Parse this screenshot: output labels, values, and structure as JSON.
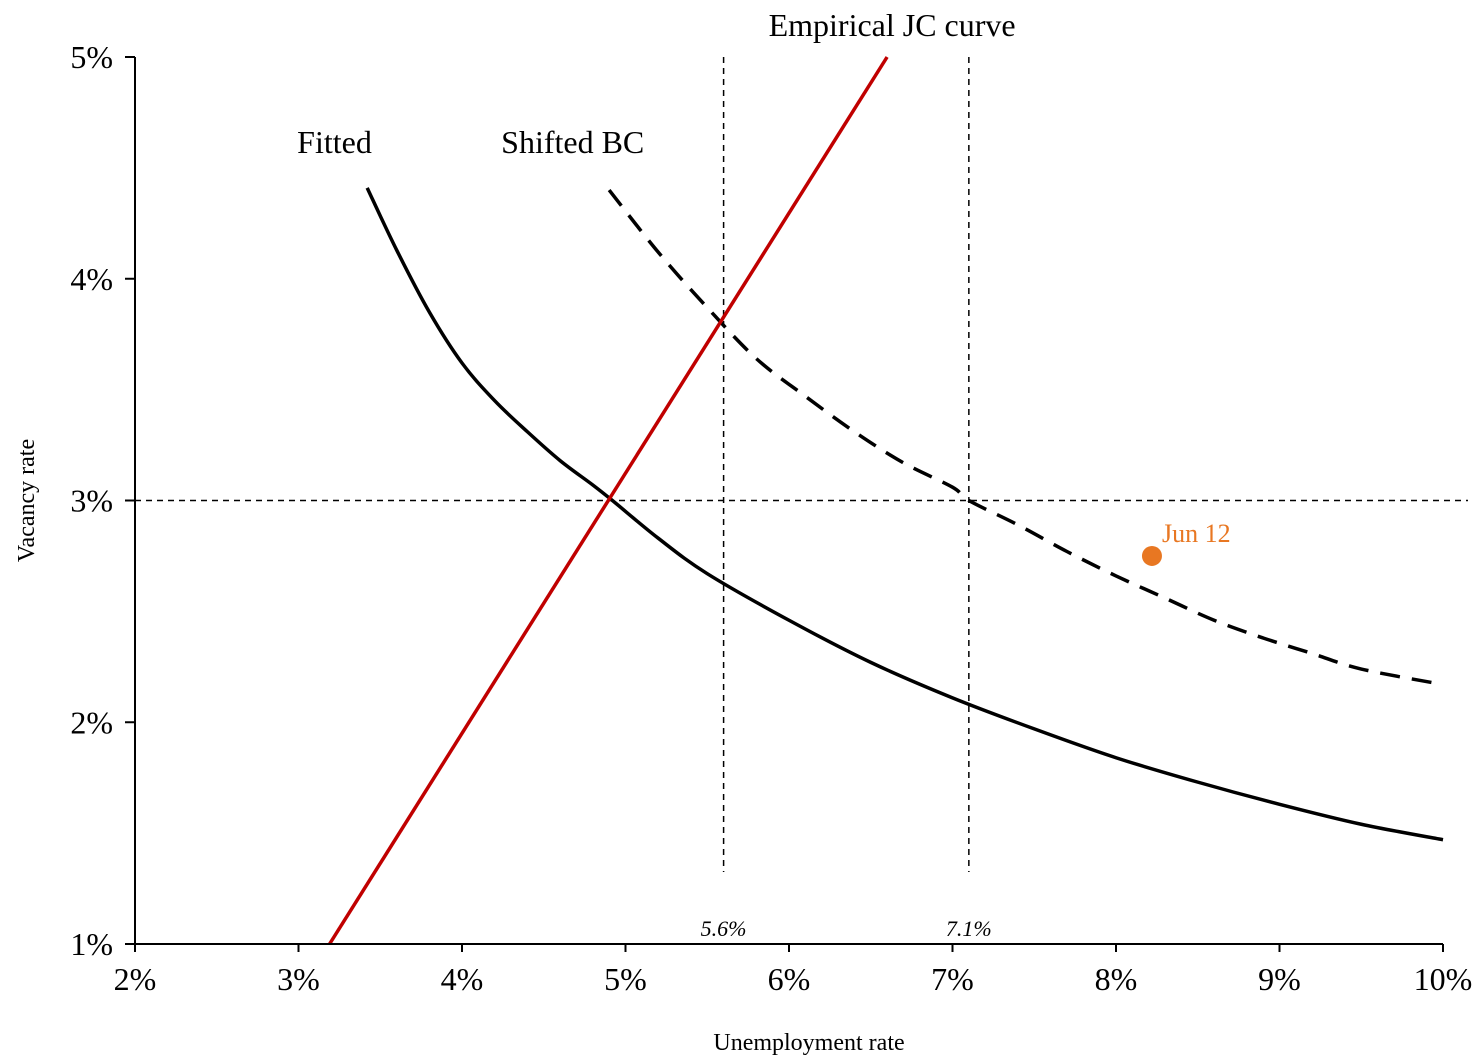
{
  "chart_data": {
    "type": "line",
    "xlabel": "Unemployment rate",
    "ylabel": "Vacancy rate",
    "xlim": [
      2,
      10
    ],
    "ylim": [
      1,
      5
    ],
    "x_ticks": [
      2,
      3,
      4,
      5,
      6,
      7,
      8,
      9,
      10
    ],
    "x_tick_labels": [
      "2%",
      "3%",
      "4%",
      "5%",
      "6%",
      "7%",
      "8%",
      "9%",
      "10%"
    ],
    "y_ticks": [
      1,
      2,
      3,
      4,
      5
    ],
    "y_tick_labels": [
      "1%",
      "2%",
      "3%",
      "4%",
      "5%"
    ],
    "grid": false,
    "series": [
      {
        "name": "Fitted",
        "style": "solid",
        "color": "#000000",
        "x": [
          3.42,
          3.6,
          3.8,
          4.0,
          4.2,
          4.4,
          4.6,
          4.8,
          4.92,
          5.2,
          5.5,
          6.0,
          6.5,
          7.0,
          7.5,
          8.0,
          8.5,
          9.0,
          9.5,
          10.0
        ],
        "y": [
          4.41,
          4.13,
          3.85,
          3.62,
          3.45,
          3.31,
          3.18,
          3.07,
          3.0,
          2.83,
          2.67,
          2.46,
          2.27,
          2.11,
          1.97,
          1.84,
          1.73,
          1.63,
          1.54,
          1.47
        ]
      },
      {
        "name": "Shifted BC",
        "style": "dashed",
        "color": "#000000",
        "x": [
          4.9,
          5.2,
          5.5,
          5.8,
          6.1,
          6.4,
          6.7,
          7.0,
          7.1,
          7.4,
          7.7,
          8.0,
          8.3,
          8.6,
          8.9,
          9.2,
          9.5,
          10.0
        ],
        "y": [
          4.4,
          4.12,
          3.87,
          3.64,
          3.47,
          3.31,
          3.17,
          3.06,
          3.0,
          2.89,
          2.77,
          2.66,
          2.56,
          2.46,
          2.38,
          2.31,
          2.24,
          2.17
        ]
      },
      {
        "name": "Empirical JC curve",
        "style": "solid",
        "color": "#c00000",
        "x": [
          3.19,
          6.6
        ],
        "y": [
          1.0,
          5.0
        ]
      }
    ],
    "reference_lines": [
      {
        "orientation": "vertical",
        "x": 5.6,
        "label": "5.6%"
      },
      {
        "orientation": "vertical",
        "x": 7.1,
        "label": "7.1%"
      },
      {
        "orientation": "horizontal",
        "y": 3
      }
    ],
    "points": [
      {
        "label": "Jun 12",
        "x": 8.22,
        "y": 2.75,
        "color": "#e87722"
      }
    ],
    "annotations": [
      "Fitted",
      "Shifted BC",
      "Empirical JC curve"
    ]
  }
}
